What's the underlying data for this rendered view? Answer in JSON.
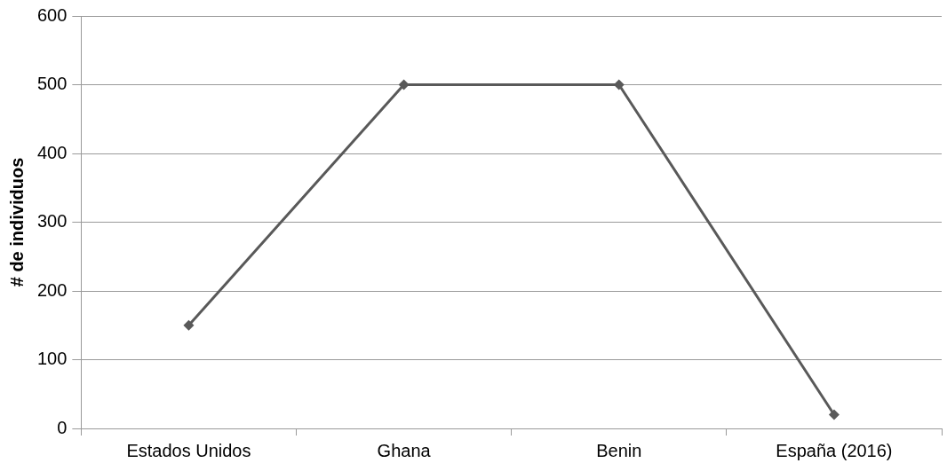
{
  "chart_data": {
    "type": "line",
    "ylabel": "# de individuos",
    "categories": [
      "Estados Unidos",
      "Ghana",
      "Benin",
      "España (2016)"
    ],
    "series": [
      {
        "color": "#595959",
        "values": [
          150,
          500,
          500,
          20
        ]
      }
    ],
    "ylim": [
      0,
      600
    ],
    "yticks": [
      0,
      100,
      200,
      300,
      400,
      500,
      600
    ],
    "grid": "y",
    "marker": "diamond",
    "line_style": "solid"
  }
}
